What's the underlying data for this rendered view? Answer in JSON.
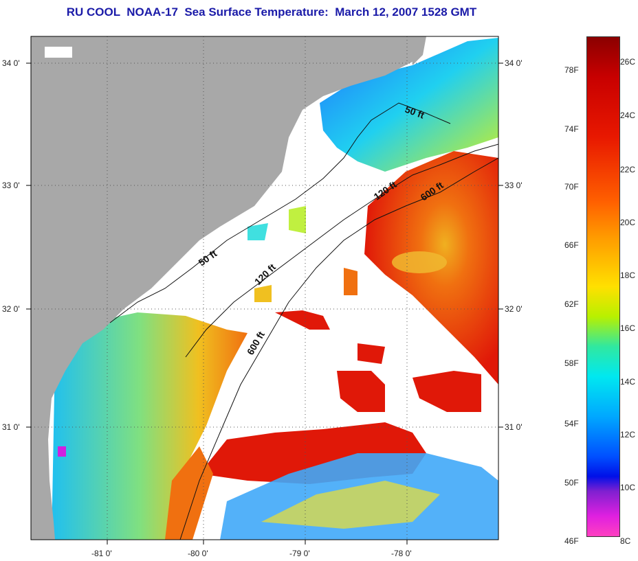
{
  "title": "RU COOL  NOAA-17  Sea Surface Temperature:  March 12, 2007 1528 GMT",
  "map": {
    "lat_ticks": [
      "34 0'",
      "33 0'",
      "32 0'",
      "31 0'"
    ],
    "lon_ticks": [
      "-81 0'",
      "-80 0'",
      "-79 0'",
      "-78 0'"
    ],
    "isobath_labels": [
      "50 ft",
      "120 ft",
      "600 ft",
      "50 ft",
      "120 ft",
      "600 ft"
    ],
    "colors": {
      "land": "#a8a8a8",
      "cloud": "#ffffff",
      "grid": "#555555"
    }
  },
  "colorbar": {
    "fahrenheit": [
      "78F",
      "74F",
      "70F",
      "66F",
      "62F",
      "58F",
      "54F",
      "50F",
      "46F"
    ],
    "celsius": [
      "26C",
      "24C",
      "22C",
      "20C",
      "18C",
      "16C",
      "14C",
      "12C",
      "10C",
      "8C"
    ]
  }
}
